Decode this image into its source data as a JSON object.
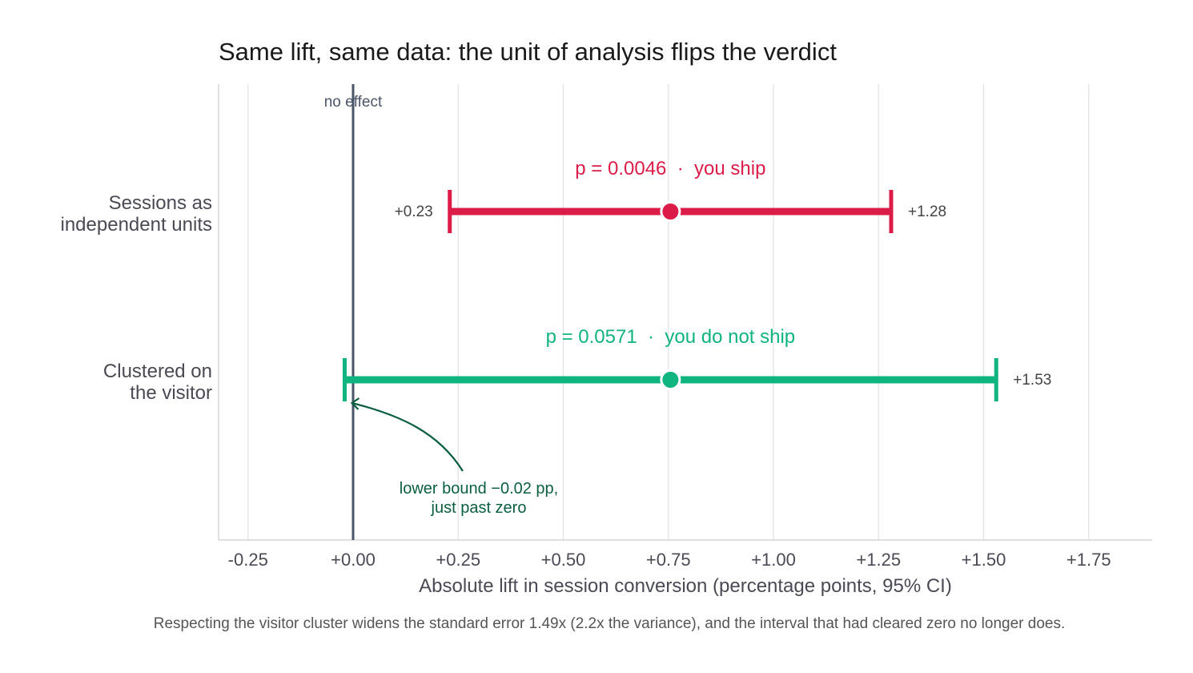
{
  "colors": {
    "significant": "#dc1c48",
    "not_significant": "#10b47f",
    "annotation": "#0b5e40",
    "reference_line": "#4a5568",
    "grid": "#e3e3e3",
    "axis": "#cccccc"
  },
  "chart_data": {
    "type": "forest",
    "title": "Same lift, same data: the unit of analysis flips the verdict",
    "xlabel": "Absolute lift in session conversion (percentage points, 95% CI)",
    "caption": "Respecting the visitor cluster widens the standard error 1.49x (2.2x the variance), and the interval that had cleared zero no longer does.",
    "xlim": [
      -0.32,
      1.88
    ],
    "x_ticks": [
      -0.25,
      0,
      0.25,
      0.5,
      0.75,
      1.0,
      1.25,
      1.5,
      1.75
    ],
    "x_tick_labels": [
      "-0.25",
      "+0.00",
      "+0.25",
      "+0.50",
      "+0.75",
      "+1.00",
      "+1.25",
      "+1.50",
      "+1.75"
    ],
    "grid": "vertical",
    "reference_line": {
      "x": 0,
      "label": "no effect"
    },
    "rows": [
      {
        "label": [
          "Sessions as",
          "independent units"
        ],
        "estimate": 0.755,
        "lower": 0.23,
        "upper": 1.28,
        "lower_label": "+0.23",
        "upper_label": "+1.28",
        "p_label": "p = 0.0046  ·  you ship",
        "color_key": "significant"
      },
      {
        "label": [
          "Clustered on",
          "the visitor"
        ],
        "estimate": 0.755,
        "lower": -0.02,
        "upper": 1.53,
        "lower_label": "",
        "upper_label": "+1.53",
        "p_label": "p = 0.0571  ·  you do not ship",
        "color_key": "not_significant"
      }
    ],
    "annotation": {
      "lines": [
        "lower bound −0.02 pp,",
        "just past zero"
      ],
      "points_to_x": -0.02
    }
  }
}
